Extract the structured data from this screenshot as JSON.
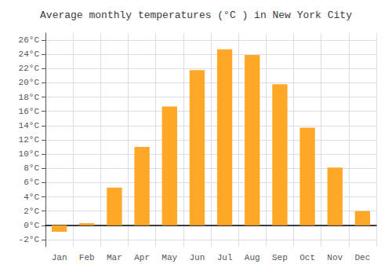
{
  "chart_data": {
    "type": "bar",
    "title": "Average monthly temperatures (°C ) in New York City",
    "categories": [
      "Jan",
      "Feb",
      "Mar",
      "Apr",
      "May",
      "Jun",
      "Jul",
      "Aug",
      "Sep",
      "Oct",
      "Nov",
      "Dec"
    ],
    "values": [
      -0.9,
      0.3,
      5.3,
      11.0,
      16.7,
      21.8,
      24.7,
      23.9,
      19.8,
      13.7,
      8.1,
      2.0
    ],
    "color": "#FFA726",
    "ylim": [
      -3,
      27
    ],
    "yticks": [
      {
        "value": -2,
        "label": "-2°C"
      },
      {
        "value": 0,
        "label": "0°C"
      },
      {
        "value": 2,
        "label": "2°C"
      },
      {
        "value": 4,
        "label": "4°C"
      },
      {
        "value": 6,
        "label": "6°C"
      },
      {
        "value": 8,
        "label": "8°C"
      },
      {
        "value": 10,
        "label": "10°C"
      },
      {
        "value": 12,
        "label": "12°C"
      },
      {
        "value": 14,
        "label": "14°C"
      },
      {
        "value": 16,
        "label": "16°C"
      },
      {
        "value": 18,
        "label": "18°C"
      },
      {
        "value": 20,
        "label": "20°C"
      },
      {
        "value": 22,
        "label": "22°C"
      },
      {
        "value": 24,
        "label": "24°C"
      },
      {
        "value": 26,
        "label": "26°C"
      }
    ],
    "grid": true
  }
}
